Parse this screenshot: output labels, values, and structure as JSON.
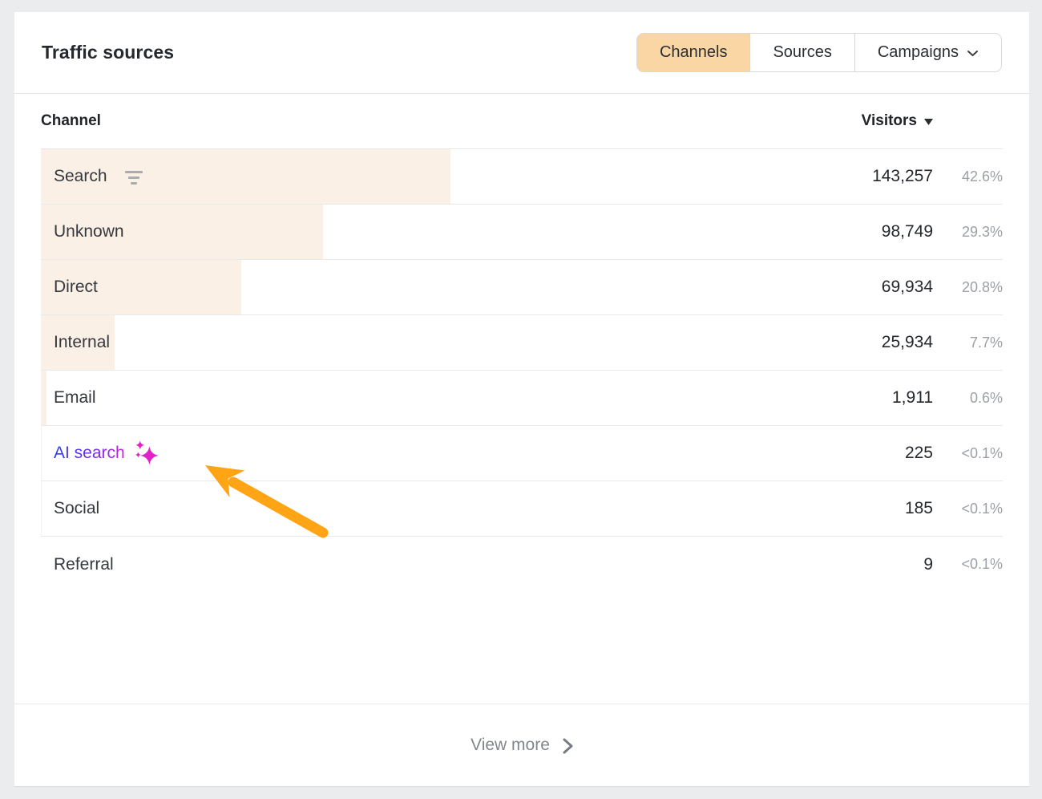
{
  "card": {
    "title": "Traffic sources"
  },
  "tabs": [
    {
      "label": "Channels",
      "active": true
    },
    {
      "label": "Sources",
      "active": false
    },
    {
      "label": "Campaigns",
      "active": false,
      "has_chevron": true
    }
  ],
  "table": {
    "channel_header": "Channel",
    "visitors_header": "Visitors",
    "sort": {
      "column": "Visitors",
      "direction": "desc"
    },
    "rows": [
      {
        "label": "Search",
        "visitors": "143,257",
        "share": "42.6%",
        "bar_pct": 42.6,
        "has_filter_icon": true
      },
      {
        "label": "Unknown",
        "visitors": "98,749",
        "share": "29.3%",
        "bar_pct": 29.3
      },
      {
        "label": "Direct",
        "visitors": "69,934",
        "share": "20.8%",
        "bar_pct": 20.8
      },
      {
        "label": "Internal",
        "visitors": "25,934",
        "share": "7.7%",
        "bar_pct": 7.7
      },
      {
        "label": "Email",
        "visitors": "1,911",
        "share": "0.6%",
        "bar_pct": 0.6
      },
      {
        "label": "AI search",
        "visitors": "225",
        "share": "<0.1%",
        "bar_pct": 0.07,
        "is_ai": true,
        "has_sparkles_icon": true
      },
      {
        "label": "Social",
        "visitors": "185",
        "share": "<0.1%",
        "bar_pct": 0.05
      },
      {
        "label": "Referral",
        "visitors": "9",
        "share": "<0.1%",
        "bar_pct": 0.003
      }
    ]
  },
  "footer": {
    "view_more_label": "View more"
  },
  "icons": {
    "search_filter": "filter-lines-icon",
    "visitors_sort": "triangle-down-icon",
    "campaigns": "chevron-down-icon",
    "ai_search": "sparkles-icon",
    "view_more": "chevron-right-icon",
    "annotation": "orange-arrow-up-left"
  },
  "colors": {
    "page_bg": "#EBECEE",
    "accent_tab": "#F9D6A3",
    "bar": "#FBF0E5",
    "divider": "#E8E9EB",
    "border_control": "#D6D8DC",
    "text_dark": "#25282D",
    "text_label": "#35383E",
    "text_gray": "#9CA0A5",
    "footer_text": "#83868C",
    "ai_start": "#2B3FF1",
    "ai_mid": "#7229E9",
    "ai_end": "#C527DD",
    "sparkle": "#E420C8",
    "arrow": "#FFA414"
  }
}
